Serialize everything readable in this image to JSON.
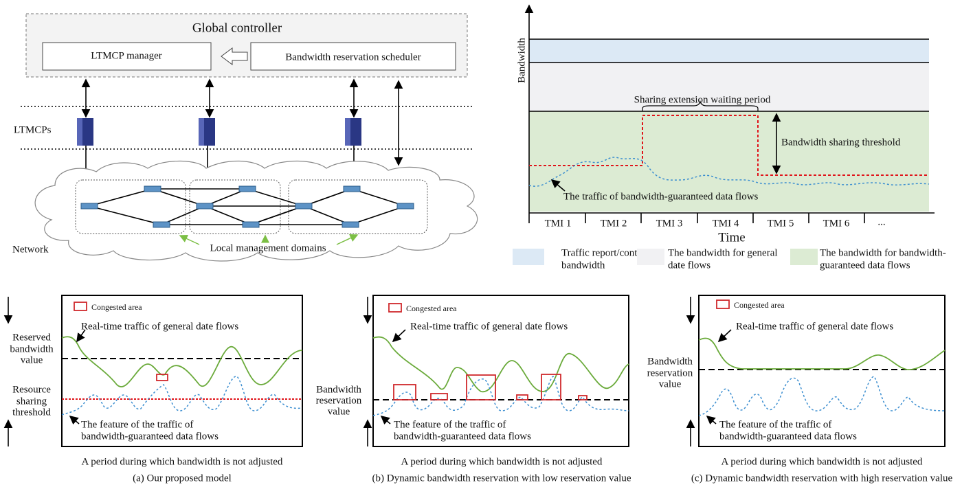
{
  "architecture": {
    "controller_title": "Global controller",
    "manager": "LTMCP manager",
    "scheduler": "Bandwidth reservation scheduler",
    "ltmcps_label": "LTMCPs",
    "network_label": "Network",
    "domains_label": "Local management domains"
  },
  "timeline": {
    "y_label": "Bandwidth",
    "x_label": "Time",
    "waiting_period": "Sharing extension waiting period",
    "threshold": "Bandwidth sharing threshold",
    "traffic": "The traffic of  bandwidth-guaranteed data flows",
    "tmis": [
      "TMI 1",
      "TMI 2",
      "TMI 3",
      "TMI 4",
      "TMI 5",
      "TMI 6",
      "..."
    ],
    "legend": [
      [
        "Traffic report/control",
        "bandwidth"
      ],
      [
        "The bandwidth for general",
        "date flows"
      ],
      [
        "The bandwidth for bandwidth-",
        "guaranteed data flows"
      ]
    ]
  },
  "panels": [
    {
      "congested": "Congested area",
      "general_traffic": "Real-time traffic of general date flows",
      "reserved_label": [
        "Reserved",
        "bandwidth",
        "value"
      ],
      "threshold_label": [
        "Resource",
        "sharing",
        "threshold"
      ],
      "feature": [
        "The feature of the traffic of",
        "bandwidth-guaranteed data flows"
      ],
      "period": "A period during which bandwidth is not adjusted",
      "caption": "(a) Our proposed model"
    },
    {
      "congested": "Congested area",
      "general_traffic": "Real-time traffic of general date flows",
      "reserved_label": [
        "Bandwidth",
        "reservation",
        "value"
      ],
      "feature": [
        "The feature of the traffic of",
        "bandwidth-guaranteed data flows"
      ],
      "period": "A period during which bandwidth is not adjusted",
      "caption": "(b) Dynamic bandwidth reservation with low reservation value"
    },
    {
      "congested": "Congested area",
      "general_traffic": "Real-time traffic of general date flows",
      "reserved_label": [
        "Bandwidth",
        "reservation",
        "value"
      ],
      "feature": [
        "The feature of the traffic of",
        "bandwidth-guaranteed data flows"
      ],
      "period": "A period during which bandwidth is not adjusted",
      "caption": "(c) Dynamic bandwidth reservation with high reservation value"
    }
  ]
}
